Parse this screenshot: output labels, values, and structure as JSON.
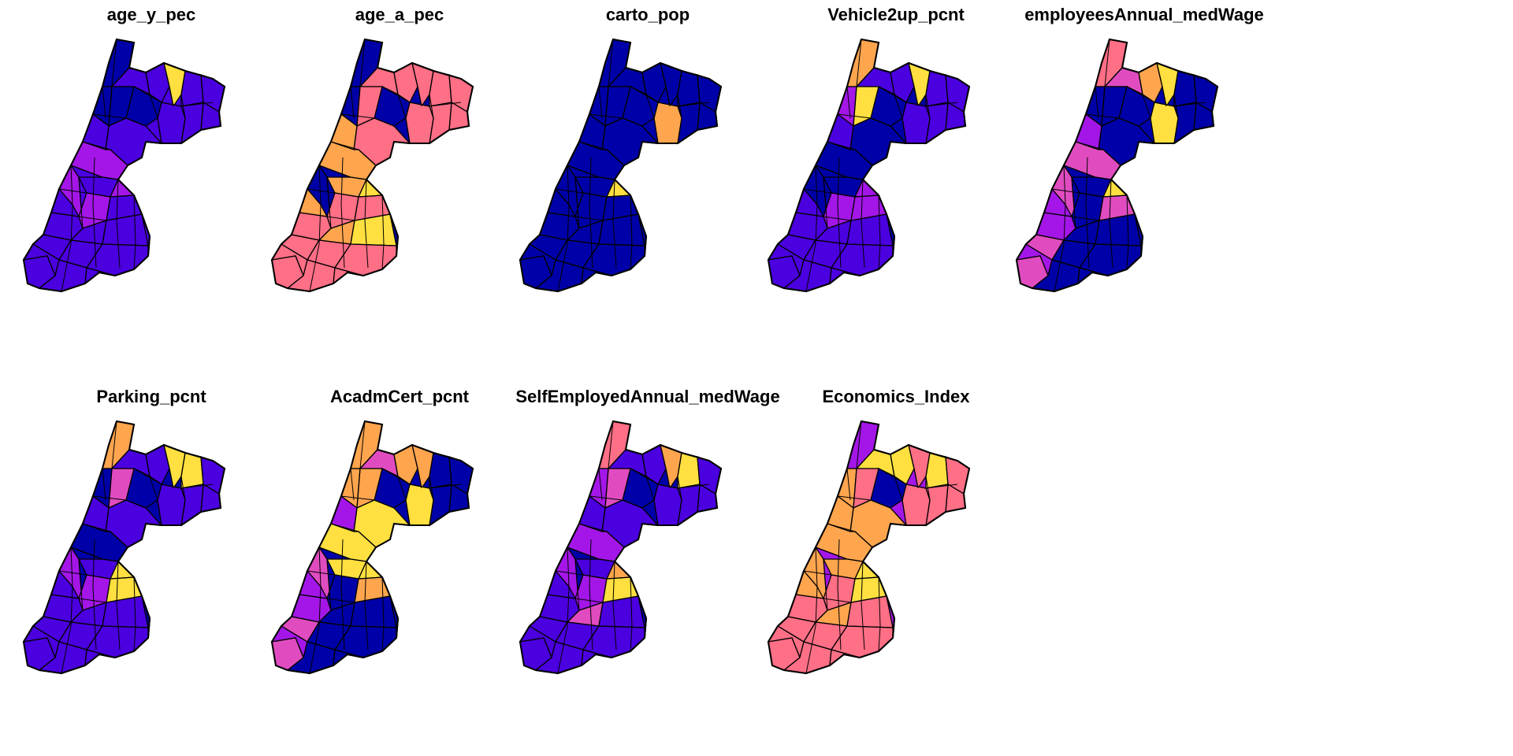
{
  "figure": {
    "background": "#ffffff",
    "outline_color": "#000000",
    "palette": [
      "#0000a8",
      "#4b00e0",
      "#a416e8",
      "#e04cc0",
      "#ff6f86",
      "#ffa54e",
      "#ffe040"
    ],
    "panels": [
      {
        "title": "age_y_pec",
        "scheme": "low",
        "low_color": "#4b00e0",
        "mid_color": "#7a1fe8",
        "high_color": "#ffe040"
      },
      {
        "title": "age_a_pec",
        "scheme": "high",
        "low_color": "#0000a8",
        "mid_color": "#ff6f86",
        "high_color": "#ffa54e"
      },
      {
        "title": "carto_pop",
        "scheme": "mono",
        "low_color": "#0000a8",
        "mid_color": "#0000a8",
        "high_color": "#ffa54e"
      },
      {
        "title": "Vehicle2up_pcnt",
        "scheme": "low",
        "low_color": "#0000a8",
        "mid_color": "#a416e8",
        "high_color": "#ff6f86"
      },
      {
        "title": "employeesAnnual_medWage",
        "scheme": "mixed",
        "low_color": "#0000a8",
        "mid_color": "#e04cc0",
        "high_color": "#ffe040"
      },
      {
        "title": "Parking_pcnt",
        "scheme": "low",
        "low_color": "#0000a8",
        "mid_color": "#4b00e0",
        "high_color": "#ffa54e"
      },
      {
        "title": "AcadmCert_pcnt",
        "scheme": "mixed",
        "low_color": "#0000a8",
        "mid_color": "#ffa54e",
        "high_color": "#ffe040"
      },
      {
        "title": "SelfEmployedAnnual_medWage",
        "scheme": "low",
        "low_color": "#0000a8",
        "mid_color": "#a416e8",
        "high_color": "#ff6f86"
      },
      {
        "title": "Economics_Index",
        "scheme": "high",
        "low_color": "#a416e8",
        "mid_color": "#ff8a70",
        "high_color": "#ffe040"
      }
    ]
  }
}
